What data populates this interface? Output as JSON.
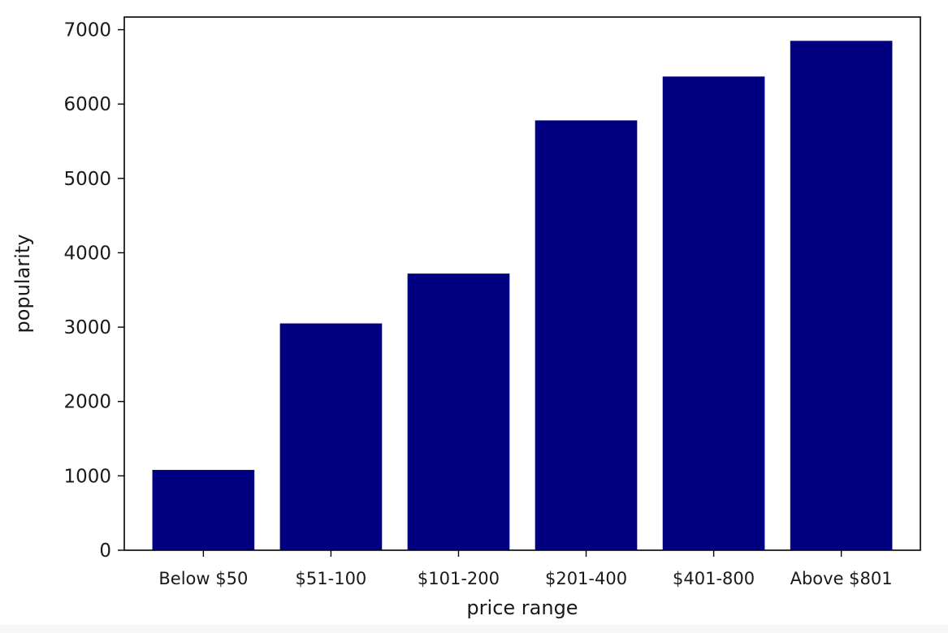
{
  "chart_data": {
    "type": "bar",
    "title": "",
    "xlabel": "price range",
    "ylabel": "popularity",
    "categories": [
      "Below $50",
      "$51-100",
      "$101-200",
      "$201-400",
      "$401-800",
      "Above $801"
    ],
    "values": [
      1080,
      3050,
      3720,
      5780,
      6370,
      6850
    ],
    "ylim": [
      0,
      7170
    ],
    "yticks": [
      0,
      1000,
      2000,
      3000,
      4000,
      5000,
      6000,
      7000
    ],
    "bar_color": "#000080",
    "grid": false,
    "legend": "none"
  }
}
